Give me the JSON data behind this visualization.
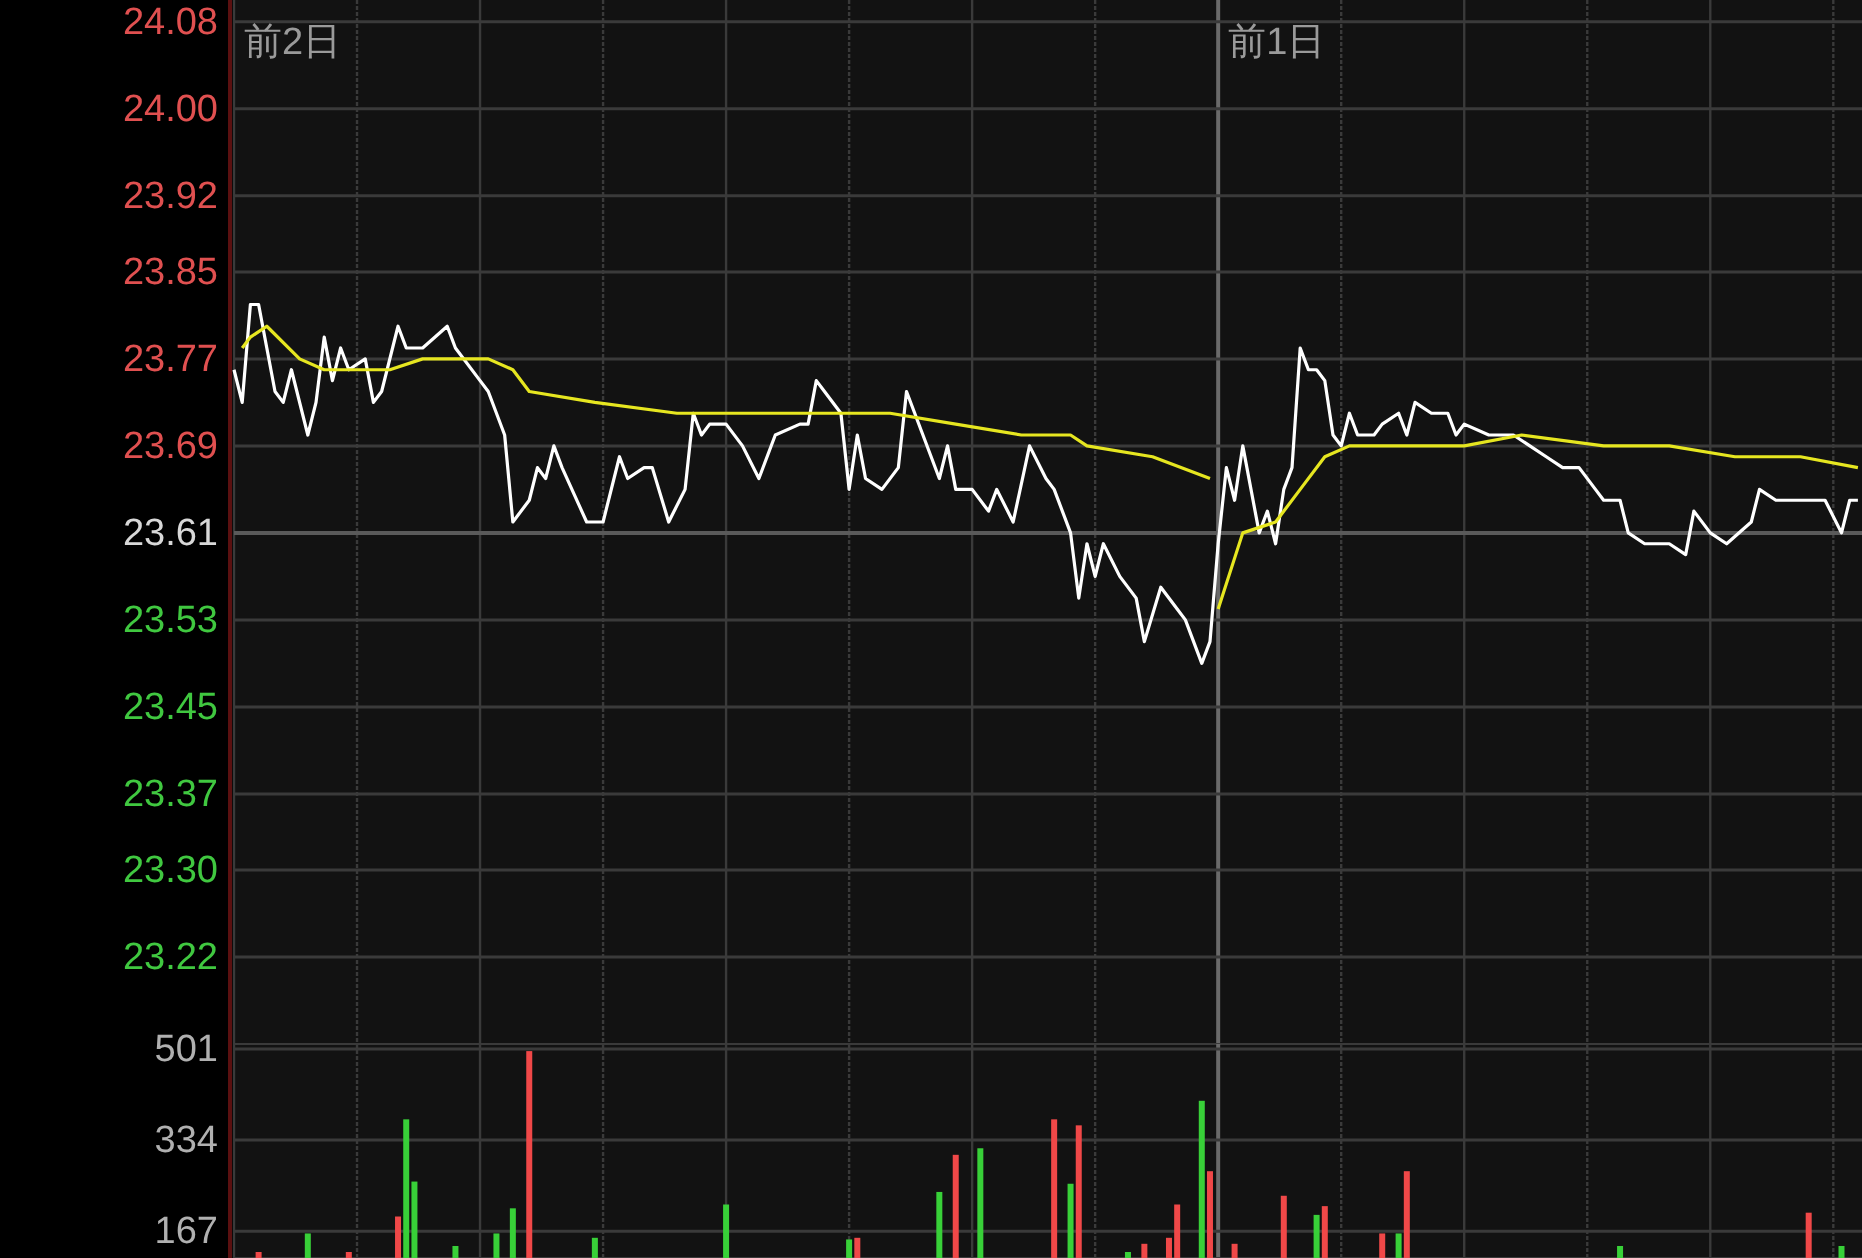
{
  "chart_data": [
    {
      "type": "line",
      "tick_labels": "y",
      "grid": true,
      "categories": [
        null,
        null,
        null,
        null,
        null,
        null,
        null,
        null,
        null,
        null,
        null,
        null,
        null,
        null,
        null,
        null,
        null,
        null,
        null,
        null,
        null,
        null,
        null,
        null,
        null,
        null,
        null,
        null,
        null,
        null,
        null,
        null,
        null,
        null,
        null,
        null,
        null,
        null,
        null,
        null,
        null,
        null,
        null,
        null,
        null,
        null,
        null,
        null,
        null,
        null,
        null,
        null,
        null,
        null,
        null,
        null,
        null,
        null,
        null,
        null,
        null,
        null,
        null,
        null,
        null,
        null,
        null,
        null,
        null,
        null,
        null,
        null,
        null,
        null,
        null,
        null,
        null,
        null,
        null,
        null,
        null,
        null,
        null,
        null,
        null,
        null,
        null,
        null,
        null,
        null,
        null,
        null,
        null,
        null,
        null,
        null,
        null,
        null,
        null,
        null,
        null,
        null,
        null,
        null,
        null,
        null,
        null,
        null,
        null,
        null,
        null,
        null,
        null,
        null,
        null,
        null,
        null,
        null,
        null,
        null,
        null,
        null,
        null,
        null,
        null,
        null,
        null,
        null,
        null,
        null,
        null,
        null,
        null,
        null,
        null,
        null,
        null,
        null,
        null,
        null,
        null,
        null,
        null,
        null,
        null,
        null,
        null,
        null,
        null,
        null,
        null,
        null,
        null,
        null,
        null,
        null,
        null,
        null,
        null,
        null,
        null,
        null,
        null,
        null,
        null,
        null,
        null,
        null,
        null,
        null,
        null,
        null,
        null,
        null,
        null,
        null,
        null,
        null,
        null,
        null,
        null,
        null,
        null,
        null,
        null,
        null,
        null,
        null,
        null,
        null,
        null,
        null,
        null,
        null,
        null,
        null,
        null,
        null,
        null
      ],
      "ylim": [
        23.14,
        24.1
      ],
      "yticks": [
        23.22,
        {
          "value": 23.3,
          "label": "23.30"
        },
        23.37,
        23.45,
        23.53,
        23.61,
        23.69,
        23.77,
        23.85,
        23.92,
        {
          "value": 24,
          "label": "24.00"
        },
        24.08
      ],
      "ref_lines": [
        {
          "axis": "y",
          "value": 23.61
        }
      ],
      "annotations": [
        "前2日",
        "前1日"
      ],
      "series": [
        {
          "color": "#ffffff",
          "values": [
            23.76,
            23.73,
            23.82,
            23.82,
            23.78,
            23.74,
            23.73,
            23.76,
            null,
            23.7,
            23.73,
            23.79,
            23.75,
            23.78,
            23.76,
            null,
            23.77,
            23.73,
            23.74,
            null,
            23.8,
            23.78,
            null,
            23.78,
            null,
            null,
            23.8,
            23.78,
            null,
            null,
            23.75,
            23.74,
            null,
            23.7,
            23.62,
            null,
            23.64,
            23.67,
            23.66,
            23.69,
            23.67,
            null,
            null,
            23.62,
            null,
            23.62,
            null,
            23.68,
            23.66,
            null,
            23.67,
            23.67,
            null,
            23.62,
            null,
            23.65,
            23.72,
            23.7,
            23.71,
            null,
            23.71,
            null,
            23.69,
            null,
            23.66,
            null,
            23.7,
            null,
            null,
            23.71,
            23.71,
            23.75,
            23.74,
            null,
            23.72,
            23.65,
            23.7,
            23.66,
            null,
            23.65,
            null,
            23.67,
            23.74,
            null,
            23.7,
            null,
            23.66,
            23.69,
            23.65,
            null,
            23.65,
            null,
            23.63,
            23.65,
            null,
            23.62,
            null,
            23.69,
            null,
            23.66,
            23.65,
            null,
            23.61,
            23.55,
            23.6,
            23.57,
            23.6,
            null,
            23.57,
            null,
            23.55,
            23.51,
            null,
            23.56,
            null,
            23.54,
            23.53,
            null,
            23.49,
            23.51,
            23.6,
            23.67,
            23.64,
            23.69,
            23.65,
            23.61,
            23.63,
            23.6,
            23.65,
            23.67,
            23.78,
            23.76,
            23.76,
            23.75,
            23.7,
            23.69,
            23.72,
            23.7,
            null,
            23.7,
            23.71,
            null,
            23.72,
            23.7,
            23.73,
            null,
            23.72,
            null,
            23.72,
            23.7,
            23.71,
            null,
            null,
            23.7,
            null,
            null,
            23.7,
            null,
            23.69,
            null,
            23.68,
            null,
            23.67,
            null,
            23.67,
            null,
            23.65,
            23.64,
            null,
            23.64,
            23.61,
            null,
            23.6,
            null,
            null,
            23.6,
            null,
            23.59,
            23.63,
            null,
            23.61,
            null,
            23.6,
            null,
            null,
            23.62,
            23.65,
            null,
            23.64,
            null,
            null,
            23.64,
            null,
            null,
            23.64,
            null,
            23.61,
            23.64,
            23.64
          ]
        },
        {
          "color": "#e6e620",
          "values": [
            null,
            23.78,
            23.79,
            null,
            23.8,
            null,
            null,
            null,
            23.77,
            null,
            null,
            23.76,
            null,
            null,
            null,
            null,
            null,
            null,
            null,
            23.76,
            null,
            null,
            null,
            23.77,
            null,
            null,
            null,
            null,
            null,
            null,
            null,
            23.77,
            null,
            null,
            23.76,
            null,
            23.74,
            null,
            null,
            null,
            null,
            null,
            null,
            null,
            23.73,
            null,
            null,
            null,
            null,
            null,
            null,
            null,
            null,
            null,
            23.72,
            null,
            null,
            null,
            null,
            null,
            null,
            null,
            null,
            null,
            null,
            null,
            23.72,
            null,
            null,
            null,
            null,
            null,
            null,
            null,
            null,
            null,
            null,
            null,
            null,
            null,
            23.72,
            null,
            null,
            null,
            null,
            null,
            null,
            null,
            23.71,
            null,
            null,
            null,
            null,
            null,
            null,
            null,
            23.7,
            null,
            null,
            null,
            null,
            null,
            23.7,
            null,
            23.69,
            null,
            null,
            null,
            null,
            null,
            null,
            null,
            23.68,
            null,
            null,
            null,
            null,
            null,
            null,
            23.66,
            null,
            null,
            null,
            null,
            null,
            null,
            null,
            null,
            null,
            null,
            null,
            null,
            null,
            null,
            null,
            null,
            null,
            null,
            null,
            null,
            null,
            null,
            null,
            null,
            null,
            null,
            null,
            null,
            null,
            null,
            null,
            null,
            null,
            null,
            null,
            null,
            null,
            null,
            null,
            null,
            null,
            null,
            null,
            null,
            null,
            null,
            null,
            null,
            null,
            null,
            null,
            null,
            null,
            null,
            null,
            null,
            null,
            null,
            null,
            null,
            null,
            null,
            null,
            null,
            null,
            null,
            null,
            null,
            null,
            null,
            null,
            null,
            null,
            null,
            null,
            null,
            null,
            null,
            null
          ]
        },
        {
          "color": "#e6e620",
          "values": [
            null,
            null,
            null,
            null,
            null,
            null,
            null,
            null,
            null,
            null,
            null,
            null,
            null,
            null,
            null,
            null,
            null,
            null,
            null,
            null,
            null,
            null,
            null,
            null,
            null,
            null,
            null,
            null,
            null,
            null,
            null,
            null,
            null,
            null,
            null,
            null,
            null,
            null,
            null,
            null,
            null,
            null,
            null,
            null,
            null,
            null,
            null,
            null,
            null,
            null,
            null,
            null,
            null,
            null,
            null,
            null,
            null,
            null,
            null,
            null,
            null,
            null,
            null,
            null,
            null,
            null,
            null,
            null,
            null,
            null,
            null,
            null,
            null,
            null,
            null,
            null,
            null,
            null,
            null,
            null,
            null,
            null,
            null,
            null,
            null,
            null,
            null,
            null,
            null,
            null,
            null,
            null,
            null,
            null,
            null,
            null,
            null,
            null,
            null,
            null,
            null,
            null,
            null,
            null,
            null,
            null,
            null,
            null,
            null,
            null,
            null,
            null,
            null,
            null,
            null,
            null,
            null,
            null,
            null,
            null,
            23.54,
            null,
            null,
            23.61,
            null,
            null,
            null,
            23.62,
            null,
            null,
            23.65,
            null,
            null,
            23.68,
            null,
            null,
            23.69,
            null,
            null,
            null,
            null,
            null,
            null,
            null,
            null,
            null,
            null,
            null,
            null,
            null,
            23.69,
            null,
            null,
            null,
            null,
            null,
            null,
            23.7,
            null,
            null,
            null,
            null,
            null,
            null,
            null,
            null,
            null,
            23.69,
            null,
            null,
            null,
            null,
            null,
            null,
            null,
            23.69,
            null,
            null,
            null,
            null,
            null,
            null,
            null,
            23.68,
            null,
            null,
            null,
            null,
            null,
            null,
            null,
            23.68,
            null,
            null,
            null,
            null,
            null,
            null,
            23.67
          ]
        }
      ]
    },
    {
      "type": "bar",
      "tick_labels": "y",
      "grid": true,
      "categories": [
        null,
        null,
        null,
        null,
        null,
        null,
        null,
        null,
        null,
        null,
        null,
        null,
        null,
        null,
        null,
        null,
        null,
        null,
        null,
        null,
        null,
        null,
        null,
        null,
        null,
        null,
        null,
        null,
        null,
        null,
        null,
        null,
        null,
        null,
        null,
        null,
        null,
        null,
        null,
        null,
        null,
        null,
        null,
        null,
        null,
        null,
        null,
        null,
        null,
        null,
        null,
        null,
        null,
        null,
        null,
        null,
        null,
        null,
        null,
        null,
        null,
        null,
        null,
        null,
        null,
        null,
        null,
        null,
        null,
        null,
        null,
        null,
        null,
        null,
        null,
        null,
        null,
        null,
        null,
        null,
        null,
        null,
        null,
        null,
        null,
        null,
        null,
        null,
        null,
        null,
        null,
        null,
        null,
        null,
        null,
        null,
        null,
        null,
        null,
        null,
        null,
        null,
        null,
        null,
        null,
        null,
        null,
        null,
        null,
        null,
        null,
        null,
        null,
        null,
        null,
        null,
        null,
        null,
        null,
        null,
        null,
        null,
        null,
        null,
        null,
        null,
        null,
        null,
        null,
        null,
        null,
        null,
        null,
        null,
        null,
        null,
        null,
        null,
        null,
        null,
        null,
        null,
        null,
        null,
        null,
        null,
        null,
        null,
        null,
        null,
        null,
        null,
        null,
        null,
        null,
        null,
        null,
        null,
        null,
        null,
        null,
        null,
        null,
        null,
        null,
        null,
        null,
        null,
        null,
        null,
        null,
        null,
        null,
        null,
        null,
        null,
        null,
        null,
        null,
        null,
        null,
        null,
        null,
        null,
        null,
        null,
        null,
        null,
        null,
        null,
        null,
        null,
        null,
        null,
        null,
        null,
        null,
        null,
        null
      ],
      "ylim": [
        118,
        510
      ],
      "yticks": [
        167,
        334,
        501
      ],
      "series": [
        {
          "color": "#f04848",
          "values": [
            null,
            null,
            null,
            129,
            null,
            null,
            null,
            null,
            null,
            null,
            null,
            null,
            null,
            null,
            129,
            null,
            null,
            null,
            null,
            null,
            194,
            null,
            null,
            null,
            null,
            null,
            null,
            null,
            null,
            null,
            null,
            null,
            null,
            null,
            null,
            null,
            497,
            null,
            null,
            null,
            null,
            null,
            null,
            null,
            null,
            null,
            null,
            null,
            null,
            null,
            null,
            null,
            null,
            null,
            null,
            null,
            null,
            null,
            null,
            null,
            null,
            null,
            null,
            null,
            null,
            null,
            null,
            null,
            null,
            null,
            null,
            null,
            null,
            null,
            null,
            null,
            155,
            null,
            null,
            null,
            null,
            null,
            null,
            null,
            null,
            null,
            null,
            null,
            307,
            null,
            null,
            null,
            null,
            null,
            null,
            null,
            null,
            null,
            null,
            null,
            372,
            null,
            null,
            361,
            null,
            null,
            null,
            null,
            null,
            null,
            null,
            144,
            null,
            null,
            155,
            216,
            null,
            null,
            null,
            277,
            null,
            null,
            144,
            null,
            null,
            null,
            null,
            null,
            232,
            null,
            null,
            null,
            null,
            213,
            null,
            null,
            null,
            null,
            null,
            null,
            163,
            null,
            null,
            277,
            null,
            null,
            null,
            null,
            null,
            null,
            null,
            null,
            null,
            null,
            null,
            null,
            null,
            null,
            null,
            null,
            null,
            null,
            null,
            null,
            null,
            null,
            null,
            null,
            null,
            null,
            null,
            null,
            null,
            null,
            null,
            null,
            null,
            null,
            null,
            null,
            null,
            null,
            null,
            null,
            null,
            null,
            null,
            null,
            null,
            null,
            null,
            null,
            201,
            null,
            null,
            null,
            null,
            null,
            null
          ]
        },
        {
          "color": "#38d038",
          "values": [
            null,
            null,
            null,
            null,
            null,
            null,
            null,
            null,
            null,
            163,
            null,
            null,
            null,
            null,
            null,
            null,
            null,
            null,
            null,
            null,
            null,
            372,
            258,
            null,
            null,
            null,
            null,
            140,
            null,
            null,
            null,
            null,
            163,
            null,
            209,
            null,
            null,
            null,
            null,
            null,
            null,
            null,
            null,
            null,
            155,
            null,
            null,
            null,
            null,
            null,
            null,
            null,
            null,
            null,
            null,
            null,
            null,
            null,
            null,
            null,
            216,
            null,
            null,
            null,
            null,
            null,
            null,
            null,
            null,
            null,
            null,
            null,
            null,
            null,
            null,
            152,
            null,
            null,
            null,
            null,
            null,
            null,
            null,
            null,
            null,
            null,
            239,
            null,
            null,
            null,
            null,
            319,
            null,
            null,
            null,
            null,
            null,
            null,
            null,
            null,
            null,
            null,
            254,
            null,
            null,
            null,
            null,
            null,
            null,
            129,
            null,
            null,
            null,
            null,
            null,
            null,
            null,
            null,
            406,
            null,
            null,
            null,
            null,
            null,
            null,
            null,
            null,
            null,
            null,
            null,
            null,
            null,
            197,
            null,
            null,
            null,
            null,
            null,
            null,
            null,
            null,
            null,
            163,
            null,
            null,
            null,
            null,
            null,
            null,
            null,
            null,
            null,
            null,
            null,
            null,
            null,
            null,
            null,
            null,
            null,
            null,
            null,
            null,
            null,
            null,
            null,
            null,
            null,
            null,
            140,
            null,
            null,
            null,
            null,
            null,
            null,
            null,
            null,
            null,
            null,
            null,
            null,
            null,
            null,
            null,
            null,
            null,
            null,
            null,
            null,
            null,
            null,
            null,
            null,
            null,
            null,
            140,
            null,
            null
          ]
        }
      ]
    }
  ]
}
